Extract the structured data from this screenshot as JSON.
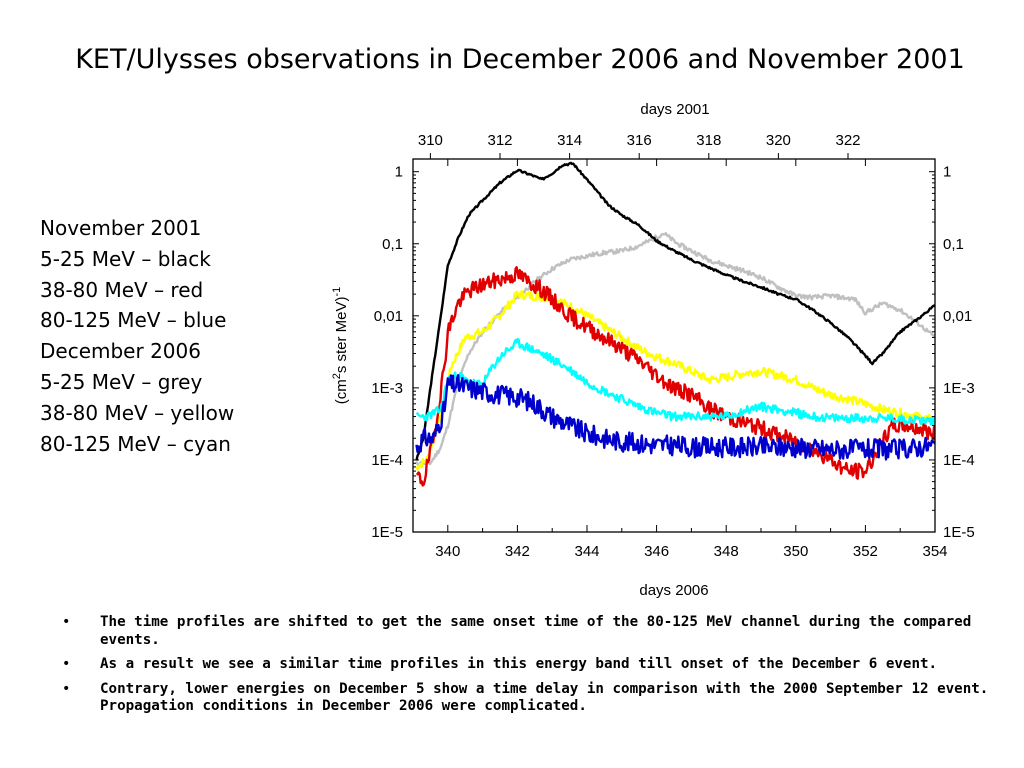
{
  "slide": {
    "title": "KET/Ulysses observations in December 2006 and November 2001",
    "legend_lines": [
      "November 2001",
      "5-25 MeV – black",
      "38-80 MeV – red",
      "80-125 MeV – blue",
      "December 2006",
      "5-25 MeV – grey",
      "38-80 MeV – yellow",
      "80-125 MeV – cyan"
    ],
    "bullets": [
      "The time profiles are shifted to get the same onset time of the 80-125 MeV channel during the compared events.",
      "As a result we see a similar time profiles in this energy band till onset of the December 6 event.",
      "Contrary, lower energies on December 5 show a time delay in comparison with the 2000 September 12 event. Propagation conditions in December 2006 were complicated."
    ]
  },
  "chart_data": {
    "type": "line",
    "xlabel": "days 2006",
    "x2label": "days 2001",
    "ylabel_base": "(cm",
    "ylabel_sup1": "2",
    "ylabel_mid": "s ster MeV)",
    "ylabel_sup2": "-1",
    "xlim": [
      339,
      354
    ],
    "x2lim": [
      309.5,
      324.5
    ],
    "ylim": [
      1e-05,
      1.5
    ],
    "yscale": "log",
    "x_ticks": [
      340,
      342,
      344,
      346,
      348,
      350,
      352,
      354
    ],
    "x2_ticks": [
      310,
      312,
      314,
      316,
      318,
      320,
      322
    ],
    "y_ticks": [
      {
        "value": 1,
        "label": "1"
      },
      {
        "value": 0.1,
        "label": "0,1"
      },
      {
        "value": 0.01,
        "label": "0,01"
      },
      {
        "value": 0.001,
        "label": "1E-3"
      },
      {
        "value": 0.0001,
        "label": "1E-4"
      },
      {
        "value": 1e-05,
        "label": "1E-5"
      }
    ],
    "grid": false,
    "series": [
      {
        "color": "#c0c0c0",
        "noise": 0.03,
        "seed": 11,
        "x": [
          339.1,
          339.5,
          339.8,
          340.0,
          340.3,
          340.6,
          341.0,
          341.5,
          342.0,
          342.5,
          343.0,
          343.5,
          344.0,
          344.5,
          345.0,
          345.4,
          345.8,
          346.2,
          346.6,
          347.0,
          347.5,
          348.0,
          348.5,
          349.0,
          349.5,
          350.0,
          350.5,
          351.0,
          351.3,
          351.7,
          352.0,
          352.5,
          353.0,
          353.5,
          354.0
        ],
        "y": [
          9e-05,
          9e-05,
          0.00015,
          0.0003,
          0.0012,
          0.003,
          0.006,
          0.011,
          0.018,
          0.03,
          0.045,
          0.06,
          0.068,
          0.075,
          0.08,
          0.09,
          0.11,
          0.14,
          0.1,
          0.08,
          0.06,
          0.05,
          0.042,
          0.034,
          0.025,
          0.019,
          0.018,
          0.019,
          0.018,
          0.017,
          0.011,
          0.015,
          0.012,
          0.008,
          0.005
        ]
      },
      {
        "color": "#000000",
        "noise": 0.015,
        "seed": 3,
        "x": [
          339.1,
          339.3,
          339.5,
          339.8,
          340.0,
          340.3,
          340.6,
          341.0,
          341.5,
          342.0,
          342.4,
          342.7,
          343.0,
          343.3,
          343.6,
          343.8,
          344.2,
          344.6,
          345.0,
          345.5,
          346.0,
          346.5,
          347.0,
          347.5,
          348.0,
          348.5,
          349.0,
          349.5,
          350.0,
          350.5,
          351.0,
          351.5,
          352.0,
          352.2,
          352.5,
          353.0,
          353.5,
          354.0
        ],
        "y": [
          0.0001,
          0.0002,
          0.001,
          0.01,
          0.05,
          0.12,
          0.25,
          0.4,
          0.7,
          1.05,
          0.9,
          0.78,
          0.95,
          1.25,
          1.3,
          1.0,
          0.6,
          0.35,
          0.25,
          0.18,
          0.11,
          0.08,
          0.06,
          0.047,
          0.037,
          0.03,
          0.025,
          0.02,
          0.017,
          0.012,
          0.008,
          0.005,
          0.0028,
          0.0022,
          0.003,
          0.006,
          0.009,
          0.014
        ]
      },
      {
        "color": "#ffff00",
        "noise": 0.06,
        "seed": 7,
        "x": [
          339.1,
          339.4,
          339.8,
          340.1,
          340.5,
          341.0,
          341.4,
          341.8,
          342.0,
          342.4,
          342.8,
          343.2,
          343.6,
          344.0,
          344.5,
          345.0,
          345.5,
          346.0,
          346.5,
          347.0,
          347.5,
          348.0,
          348.5,
          349.0,
          349.5,
          350.0,
          350.5,
          351.0,
          351.5,
          352.0,
          352.5,
          353.0,
          353.5,
          354.0
        ],
        "y": [
          8e-05,
          0.0001,
          0.0004,
          0.002,
          0.005,
          0.006,
          0.009,
          0.015,
          0.02,
          0.019,
          0.018,
          0.016,
          0.013,
          0.01,
          0.007,
          0.005,
          0.0035,
          0.0027,
          0.0022,
          0.0017,
          0.0013,
          0.0014,
          0.0016,
          0.0017,
          0.0015,
          0.0013,
          0.001,
          0.0008,
          0.0007,
          0.0006,
          0.0005,
          0.00045,
          0.0004,
          0.00035
        ]
      },
      {
        "color": "#e00000",
        "noise": 0.11,
        "seed": 19,
        "x": [
          339.1,
          339.3,
          339.6,
          339.9,
          340.0,
          340.3,
          340.6,
          341.0,
          341.5,
          342.0,
          342.3,
          342.6,
          343.0,
          343.5,
          344.0,
          344.5,
          345.0,
          345.5,
          346.0,
          346.5,
          347.0,
          347.5,
          348.0,
          348.5,
          349.0,
          349.5,
          350.0,
          350.5,
          351.0,
          351.5,
          352.0,
          352.4,
          352.8,
          353.2,
          353.6,
          354.0
        ],
        "y": [
          6e-05,
          5e-05,
          0.0002,
          0.002,
          0.006,
          0.015,
          0.022,
          0.027,
          0.032,
          0.038,
          0.03,
          0.025,
          0.017,
          0.01,
          0.007,
          0.005,
          0.0035,
          0.0024,
          0.0015,
          0.001,
          0.0008,
          0.00052,
          0.0004,
          0.00033,
          0.00028,
          0.00022,
          0.00018,
          0.00014,
          0.0001,
          7e-05,
          7e-05,
          0.00015,
          0.0003,
          0.0003,
          0.00027,
          0.00022
        ]
      },
      {
        "color": "#00ffff",
        "noise": 0.06,
        "seed": 23,
        "x": [
          339.1,
          339.4,
          339.8,
          340.0,
          340.3,
          340.6,
          341.0,
          341.3,
          341.6,
          342.0,
          342.5,
          343.0,
          343.5,
          344.0,
          344.5,
          345.0,
          345.5,
          346.0,
          346.5,
          347.0,
          347.5,
          348.0,
          348.5,
          349.0,
          349.5,
          350.0,
          350.5,
          351.0,
          351.5,
          352.0,
          352.5,
          353.0,
          353.5,
          354.0
        ],
        "y": [
          0.0004,
          0.0004,
          0.0005,
          0.0013,
          0.0015,
          0.0012,
          0.0011,
          0.002,
          0.003,
          0.0042,
          0.0033,
          0.0025,
          0.0018,
          0.0012,
          0.0009,
          0.0007,
          0.00055,
          0.00045,
          0.0004,
          0.0004,
          0.0004,
          0.0004,
          0.00048,
          0.00055,
          0.0005,
          0.00045,
          0.0004,
          0.00038,
          0.00038,
          0.00038,
          0.00038,
          0.00037,
          0.00036,
          0.00035
        ]
      },
      {
        "color": "#0000cc",
        "noise": 0.14,
        "seed": 31,
        "x": [
          339.1,
          339.3,
          339.6,
          339.9,
          340.0,
          340.3,
          340.6,
          341.0,
          341.5,
          342.0,
          342.5,
          343.0,
          343.5,
          344.0,
          344.5,
          345.0,
          345.5,
          346.0,
          346.5,
          347.0,
          348.0,
          349.0,
          350.0,
          351.0,
          352.0,
          353.0,
          353.5,
          354.0
        ],
        "y": [
          0.00015,
          0.0002,
          0.0002,
          0.0005,
          0.0011,
          0.0011,
          0.001,
          0.0009,
          0.0008,
          0.00075,
          0.0006,
          0.0004,
          0.0003,
          0.00023,
          0.0002,
          0.00018,
          0.00017,
          0.00016,
          0.00016,
          0.00015,
          0.00015,
          0.00015,
          0.00015,
          0.00014,
          0.00014,
          0.00014,
          0.00015,
          0.00016
        ]
      }
    ]
  }
}
